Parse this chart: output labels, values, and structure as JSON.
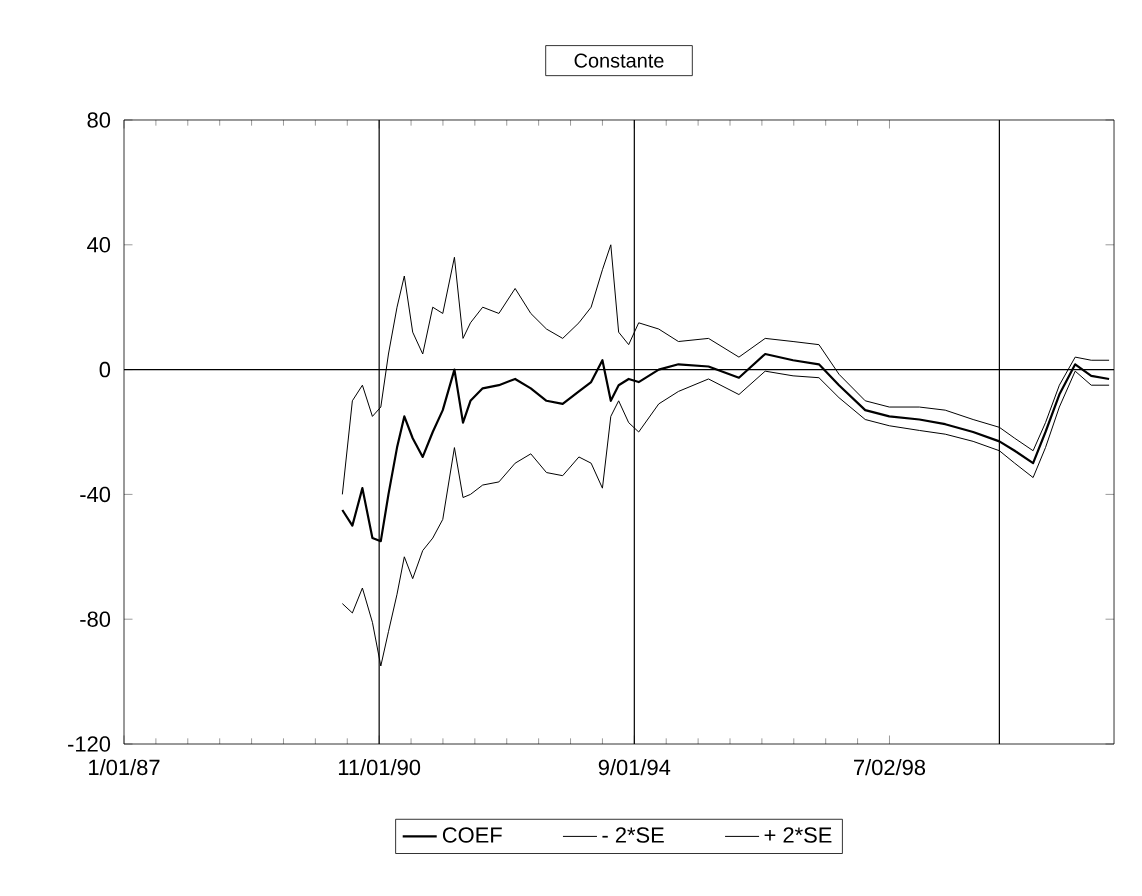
{
  "chart_data": {
    "type": "line",
    "title": "Constante",
    "x": [
      "1990-04-13",
      "1990-06-07",
      "1990-08-01",
      "1990-09-25",
      "1990-11-10",
      "1990-12-22",
      "1991-02-07",
      "1991-03-19",
      "1991-05-04",
      "1991-06-28",
      "1991-08-22",
      "1991-10-16",
      "1991-12-19",
      "1992-02-04",
      "1992-03-16",
      "1992-05-22",
      "1992-08-19",
      "1992-11-16",
      "1993-02-10",
      "1993-05-07",
      "1993-08-04",
      "1993-11-01",
      "1994-01-07",
      "1994-03-10",
      "1994-04-25",
      "1994-06-07",
      "1994-08-01",
      "1994-09-25",
      "1995-01-13",
      "1995-05-01",
      "1995-10-13",
      "1996-03-28",
      "1996-08-19",
      "1997-01-19",
      "1997-06-10",
      "1997-09-28",
      "1998-02-19",
      "1998-07-01",
      "1998-12-13",
      "1999-05-04",
      "1999-10-04",
      "2000-02-25",
      "2000-05-19",
      "2000-08-28",
      "2000-11-04",
      "2001-01-19",
      "2001-04-16",
      "2001-07-13",
      "2001-10-19"
    ],
    "series": [
      {
        "name": "COEF",
        "color": "#000000",
        "values": [
          -45,
          -50,
          -38,
          -54,
          -55,
          -40,
          -25,
          -15,
          -22,
          -28,
          -20,
          -13,
          0,
          -17,
          -10,
          -6,
          -5,
          -3,
          -6,
          -10,
          -11,
          -7,
          -4,
          3,
          -10,
          -5,
          -3,
          -4,
          0,
          1.7,
          1,
          -2.6,
          5,
          3,
          1.7,
          -5,
          -13,
          -15,
          -16,
          -17.5,
          -20,
          -23,
          -26,
          -30,
          -20,
          -8,
          1.7,
          -2,
          -3
        ]
      },
      {
        "name": "- 2*SE",
        "color": "#000000",
        "values": [
          -75,
          -78,
          -70,
          -81,
          -95,
          -84,
          -72,
          -60,
          -67,
          -58,
          -54,
          -48,
          -25,
          -41,
          -40,
          -37,
          -36,
          -30,
          -27,
          -33,
          -34,
          -28,
          -30,
          -38,
          -15,
          -10,
          -17,
          -20,
          -11,
          -7,
          -3,
          -8,
          -0.5,
          -2,
          -2.6,
          -9,
          -16,
          -18,
          -19.5,
          -20.7,
          -23,
          -26,
          -30,
          -34.6,
          -25,
          -12,
          -0.5,
          -5,
          -5
        ]
      },
      {
        "name": "+ 2*SE",
        "color": "#000000",
        "values": [
          -40,
          -10,
          -5,
          -15,
          -12,
          5,
          20,
          30,
          12,
          5,
          20,
          18,
          36,
          10,
          15,
          20,
          18,
          26,
          18,
          13,
          10,
          15,
          20,
          32,
          40,
          12,
          8,
          15,
          13,
          9,
          10,
          4,
          10,
          9,
          8,
          -1.5,
          -10,
          -12,
          -12,
          -13,
          -16,
          -18.5,
          -22,
          -26,
          -17,
          -5,
          4,
          3,
          3
        ]
      }
    ],
    "xlim": [
      "1987-01-01",
      "2001-11-15"
    ],
    "xticks": [
      {
        "value": "1987-01-01",
        "label": "1/01/87"
      },
      {
        "value": "1990-11-01",
        "label": "11/01/90"
      },
      {
        "value": "1994-09-01",
        "label": "9/01/94"
      },
      {
        "value": "1998-07-02",
        "label": "7/02/98"
      }
    ],
    "ylim": [
      -120,
      80
    ],
    "yticks": [
      -120,
      -80,
      -40,
      0,
      40,
      80
    ],
    "ref_lines": [
      {
        "axis": "y",
        "value": 0,
        "color": "#000000"
      },
      {
        "axis": "x",
        "value": "1990-11-01",
        "color": "#000000"
      },
      {
        "axis": "x",
        "value": "1994-09-01",
        "color": "#000000"
      },
      {
        "axis": "x",
        "value": "2000-02-25",
        "color": "#000000"
      }
    ],
    "legend": "bottom",
    "marker": "none",
    "line_style": "solid"
  }
}
